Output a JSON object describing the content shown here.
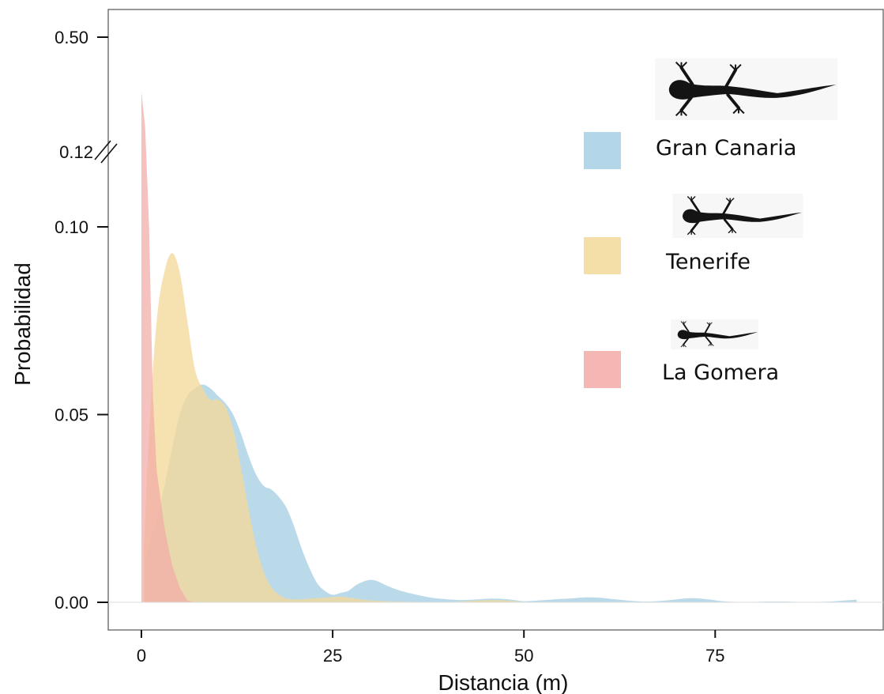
{
  "chart_data": {
    "type": "area",
    "xlabel": "Distancia (m)",
    "ylabel": "Probabilidad",
    "xlim": [
      -4.5,
      97
    ],
    "x_ticks": [
      0,
      25,
      50,
      75
    ],
    "x_tick_labels": [
      "0",
      "25",
      "50",
      "75"
    ],
    "y_axis_broken": true,
    "y_ticks": [
      0.0,
      0.05,
      0.1,
      0.12,
      0.5
    ],
    "y_tick_labels": [
      "0.00",
      "0.05",
      "0.10",
      "0.12",
      "0.50"
    ],
    "grid": false,
    "legend_position": "top-right",
    "series": [
      {
        "name": "Gran Canaria",
        "color": "#a6cfe4",
        "icon": "lizard-silhouette-icon",
        "x": [
          0.5,
          1,
          2,
          3,
          4,
          5,
          6,
          7,
          8,
          9,
          10,
          11,
          12,
          13,
          14,
          15,
          16,
          17,
          18,
          19,
          20,
          21,
          22,
          23,
          24,
          25,
          26,
          27,
          28,
          29,
          30,
          31,
          32,
          34,
          36,
          38,
          40,
          42,
          44,
          46,
          48,
          50,
          52,
          54,
          56,
          58,
          60,
          62,
          64,
          66,
          68,
          70,
          72,
          74,
          76,
          78,
          80,
          82,
          84,
          86,
          88,
          90,
          92,
          93.5
        ],
        "y": [
          0.012,
          0.015,
          0.022,
          0.031,
          0.041,
          0.05,
          0.055,
          0.057,
          0.058,
          0.057,
          0.055,
          0.053,
          0.05,
          0.045,
          0.039,
          0.034,
          0.031,
          0.03,
          0.028,
          0.025,
          0.02,
          0.014,
          0.009,
          0.005,
          0.003,
          0.002,
          0.0025,
          0.003,
          0.0045,
          0.0055,
          0.006,
          0.0055,
          0.0045,
          0.003,
          0.002,
          0.0012,
          0.0008,
          0.0006,
          0.0008,
          0.001,
          0.0008,
          0.0003,
          0.0005,
          0.0008,
          0.001,
          0.0013,
          0.0012,
          0.0008,
          0.0004,
          0.0002,
          0.0004,
          0.0008,
          0.0011,
          0.0008,
          0.0003,
          0.0001,
          0.0001,
          0.0002,
          0.0002,
          0.0001,
          0.0001,
          0.0002,
          0.0005,
          0.0007
        ]
      },
      {
        "name": "Tenerife",
        "color": "#f3d99a",
        "icon": "lizard-silhouette-icon",
        "x": [
          0.3,
          1,
          2,
          3,
          4,
          5,
          6,
          7,
          8,
          9,
          10,
          11,
          12,
          13,
          14,
          15,
          16,
          17,
          18,
          19,
          20,
          21,
          22,
          24,
          26,
          28,
          30,
          34,
          40,
          46,
          50
        ],
        "y": [
          0.013,
          0.045,
          0.075,
          0.088,
          0.093,
          0.088,
          0.075,
          0.062,
          0.057,
          0.054,
          0.054,
          0.052,
          0.046,
          0.036,
          0.025,
          0.015,
          0.008,
          0.004,
          0.002,
          0.001,
          0.0008,
          0.0008,
          0.001,
          0.0012,
          0.0015,
          0.001,
          0.0005,
          0.0002,
          0.0001,
          0.0006,
          0.0001
        ]
      },
      {
        "name": "La Gomera",
        "color": "#f2aaa6",
        "icon": "lizard-silhouette-icon",
        "x": [
          0,
          0.5,
          1,
          1.5,
          2,
          3,
          4,
          5,
          6,
          7
        ],
        "y": [
          0.32,
          0.2,
          0.1,
          0.055,
          0.035,
          0.02,
          0.01,
          0.004,
          0.0005,
          0.0
        ]
      }
    ]
  }
}
